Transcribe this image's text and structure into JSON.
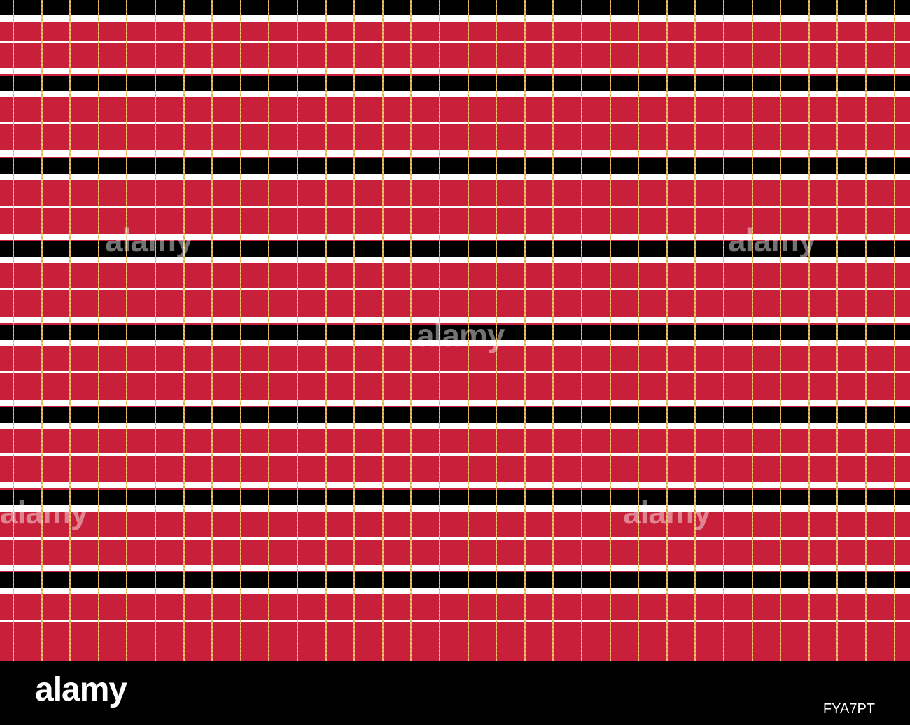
{
  "colors": {
    "red": "#c8203a",
    "black": "#000000",
    "white": "#ffffff",
    "gold": "#e0a23a"
  },
  "footer": {
    "logo_text": "alamy",
    "image_code": "FYA7PT"
  },
  "watermark_text": "alamy"
}
